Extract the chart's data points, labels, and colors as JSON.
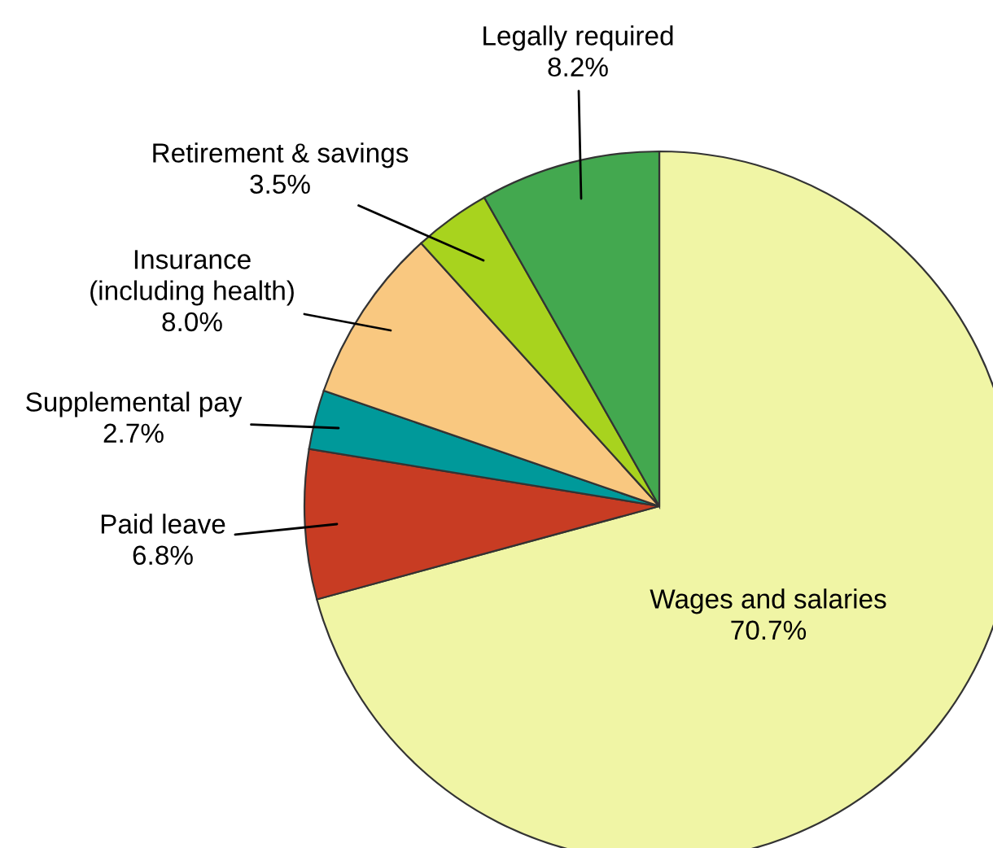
{
  "chart_data": {
    "type": "pie",
    "categories": [
      "Wages and salaries",
      "Paid leave",
      "Supplemental pay",
      "Insurance\n(including health)",
      "Retirement & savings",
      "Legally required"
    ],
    "values": [
      70.7,
      6.8,
      2.7,
      8.0,
      3.5,
      8.2
    ],
    "colors": [
      "#f0f5a5",
      "#c83c23",
      "#00999a",
      "#f9c880",
      "#a8d31e",
      "#43a84f"
    ],
    "value_labels": [
      "70.7%",
      "6.8%",
      "2.7%",
      "8.0%",
      "3.5%",
      "8.2%"
    ]
  }
}
